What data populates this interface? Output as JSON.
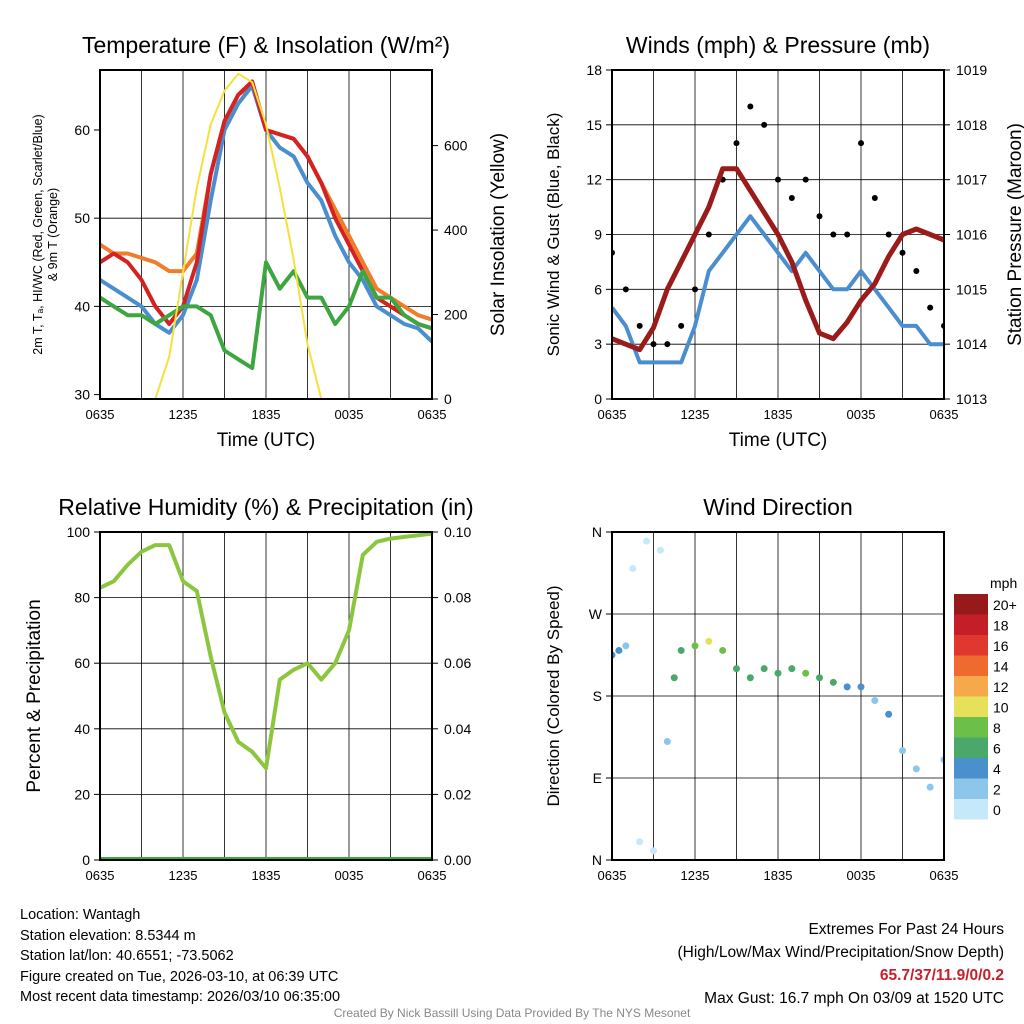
{
  "chart_data": [
    {
      "id": "temp",
      "type": "line",
      "title": "Temperature (F) & Insolation (W/m²)",
      "xlabel": "Time (UTC)",
      "ylabel": "2m T, Td, HI/WC (Red, Green, Scarlet/Blue) & 9m T (Orange)",
      "ylabel_lines": [
        "2m T, Tₐ, HI/WC (Red, Green, Scarlet/Blue)",
        "& 9m T (Orange)"
      ],
      "y2label": "Solar Insolation (Yellow)",
      "ylim": [
        29.5,
        66.8
      ],
      "y2lim": [
        0,
        779
      ],
      "yticks": [
        30,
        40,
        50,
        60
      ],
      "y2ticks": [
        0,
        200,
        400,
        600
      ],
      "xticks": [
        "0635",
        "1235",
        "1835",
        "0035",
        "0635"
      ],
      "x_hours": 24,
      "series": [
        {
          "name": "9m T",
          "color": "#f07d2c",
          "axis": "left",
          "values": [
            47,
            46,
            46,
            45.5,
            45,
            44,
            44,
            46,
            55,
            61,
            64,
            65,
            60,
            59.5,
            59,
            57,
            54,
            51,
            48,
            45,
            42,
            41,
            40,
            39,
            38.5
          ]
        },
        {
          "name": "HI/WC",
          "color": "#4a8ed0",
          "axis": "left",
          "values": [
            43,
            42,
            41,
            40,
            38,
            37,
            39,
            43,
            52,
            60,
            63,
            65,
            60,
            58,
            57,
            54,
            52,
            48,
            45,
            43,
            40,
            39,
            38,
            37.5,
            36
          ]
        },
        {
          "name": "2m T",
          "color": "#d42222",
          "axis": "left",
          "values": [
            45,
            46,
            45,
            43,
            40,
            38,
            40,
            45,
            55,
            61,
            64,
            65.5,
            60,
            59.5,
            59,
            57,
            54,
            50,
            47,
            44,
            41,
            40,
            39,
            38,
            37.5
          ]
        },
        {
          "name": "Td",
          "color": "#3da640",
          "axis": "left",
          "values": [
            41,
            40,
            39,
            39,
            38,
            39,
            40,
            40,
            39,
            35,
            34,
            33,
            45,
            42,
            44,
            41,
            41,
            38,
            40,
            44,
            41,
            41,
            39,
            38,
            37.5
          ]
        },
        {
          "name": "Solar Insolation",
          "color": "#f5e03c",
          "axis": "right",
          "values": [
            0,
            0,
            0,
            0,
            0,
            100,
            300,
            500,
            650,
            730,
            770,
            750,
            650,
            500,
            330,
            130,
            0,
            0,
            0,
            0,
            0,
            0,
            0,
            0,
            0
          ]
        }
      ]
    },
    {
      "id": "wind",
      "type": "line",
      "title": "Winds (mph) & Pressure (mb)",
      "xlabel": "Time (UTC)",
      "ylabel": "Sonic Wind & Gust (Blue, Black)",
      "y2label": "Station Pressure (Maroon)",
      "ylim": [
        0,
        18
      ],
      "y2lim": [
        1013,
        1019
      ],
      "yticks": [
        0,
        3,
        6,
        9,
        12,
        15,
        18
      ],
      "y2ticks": [
        1013,
        1014,
        1015,
        1016,
        1017,
        1018,
        1019
      ],
      "xticks": [
        "0635",
        "1235",
        "1835",
        "0035",
        "0635"
      ],
      "x_hours": 24,
      "series": [
        {
          "name": "Sonic Wind",
          "color": "#4a8ed0",
          "axis": "left",
          "values": [
            5,
            4,
            2,
            2,
            2,
            2,
            4,
            7,
            8,
            9,
            10,
            9,
            8,
            7,
            8,
            7,
            6,
            6,
            7,
            6,
            5,
            4,
            4,
            3,
            3
          ]
        },
        {
          "name": "Gust",
          "color": "#000000",
          "axis": "left",
          "style": "dots",
          "values": [
            8,
            6,
            4,
            3,
            3,
            4,
            6,
            9,
            12,
            14,
            16,
            15,
            12,
            11,
            12,
            10,
            9,
            9,
            14,
            11,
            9,
            8,
            7,
            5,
            4
          ]
        },
        {
          "name": "Station Pressure",
          "color": "#9b1b1b",
          "axis": "right",
          "values": [
            1014.1,
            1014,
            1013.9,
            1014.3,
            1015,
            1015.5,
            1016,
            1016.5,
            1017.2,
            1017.2,
            1016.8,
            1016.4,
            1016,
            1015.5,
            1014.8,
            1014.2,
            1014.1,
            1014.4,
            1014.8,
            1015.1,
            1015.6,
            1016,
            1016.1,
            1016,
            1015.9
          ]
        }
      ]
    },
    {
      "id": "rh",
      "type": "line",
      "title": "Relative Humidity (%) & Precipitation (in)",
      "xlabel": "",
      "ylabel": "Percent & Precipitation",
      "ylim": [
        0,
        100
      ],
      "y2lim": [
        0,
        0.1
      ],
      "yticks": [
        0,
        20,
        40,
        60,
        80,
        100
      ],
      "y2ticks": [
        "0.00",
        "0.02",
        "0.04",
        "0.06",
        "0.08",
        "0.10"
      ],
      "xticks": [
        "0635",
        "1235",
        "1835",
        "0035",
        "0635"
      ],
      "x_hours": 24,
      "series": [
        {
          "name": "Relative Humidity",
          "color": "#8cc63e",
          "axis": "left",
          "values": [
            83,
            85,
            90,
            94,
            96,
            96,
            85,
            82,
            62,
            45,
            36,
            33,
            28,
            55,
            58,
            60,
            55,
            60,
            70,
            93,
            97,
            98,
            98.5,
            99,
            99.5
          ]
        },
        {
          "name": "Precipitation",
          "color": "#3da640",
          "axis": "right",
          "values": [
            0,
            0,
            0,
            0,
            0,
            0,
            0,
            0,
            0,
            0,
            0,
            0,
            0,
            0,
            0,
            0,
            0,
            0,
            0,
            0,
            0,
            0,
            0,
            0,
            0
          ]
        }
      ]
    },
    {
      "id": "dir",
      "type": "scatter",
      "title": "Wind Direction",
      "ylabel": "Direction (Colored By Speed)",
      "ylim": [
        0,
        360
      ],
      "yticks": [
        "N",
        "E",
        "S",
        "W",
        "N"
      ],
      "xticks": [
        "0635",
        "1235",
        "1835",
        "0035",
        "0635"
      ],
      "x_hours": 24,
      "points": [
        [
          0,
          225,
          4
        ],
        [
          0.5,
          230,
          4
        ],
        [
          1,
          235,
          3
        ],
        [
          1.5,
          320,
          1
        ],
        [
          2,
          20,
          1
        ],
        [
          2.5,
          350,
          1
        ],
        [
          3,
          10,
          1
        ],
        [
          3.5,
          340,
          1
        ],
        [
          4,
          130,
          3
        ],
        [
          4.5,
          200,
          6
        ],
        [
          5,
          230,
          7
        ],
        [
          6,
          235,
          9
        ],
        [
          7,
          240,
          11
        ],
        [
          8,
          230,
          8
        ],
        [
          9,
          210,
          6
        ],
        [
          10,
          200,
          7
        ],
        [
          11,
          210,
          7
        ],
        [
          12,
          205,
          6
        ],
        [
          13,
          210,
          7
        ],
        [
          14,
          205,
          8
        ],
        [
          15,
          200,
          6
        ],
        [
          16,
          195,
          6
        ],
        [
          17,
          190,
          4
        ],
        [
          18,
          190,
          5
        ],
        [
          19,
          175,
          3
        ],
        [
          20,
          160,
          4
        ],
        [
          21,
          120,
          3
        ],
        [
          22,
          100,
          2
        ],
        [
          23,
          80,
          2
        ],
        [
          24,
          110,
          3
        ]
      ],
      "colorbar": {
        "title": "mph",
        "labels": [
          "20+",
          "18",
          "16",
          "14",
          "12",
          "10",
          "8",
          "6",
          "4",
          "2",
          "0"
        ],
        "colors": [
          "#961a1a",
          "#c41f28",
          "#e0382e",
          "#ee6a2e",
          "#f5a94a",
          "#e6e05a",
          "#6cc04a",
          "#4aa86a",
          "#4a90cc",
          "#8cc6ea",
          "#c6e9fa"
        ]
      }
    }
  ],
  "info": {
    "location": "Location: Wantagh",
    "elevation": "Station elevation: 8.5344 m",
    "latlon": "Station lat/lon: 40.6551; -73.5062",
    "created": "Figure created on Tue, 2026-03-10, at 06:39 UTC",
    "recent": "Most recent data timestamp: 2026/03/10 06:35:00"
  },
  "extremes": {
    "title": "Extremes For Past 24 Hours",
    "subtitle": "(High/Low/Max Wind/Precipitation/Snow Depth)",
    "values": "65.7/37/11.9/0/0.2",
    "gust": "Max Gust: 16.7 mph On 03/09 at 1520 UTC"
  },
  "credit": "Created By Nick Bassill Using Data Provided By The NYS Mesonet"
}
